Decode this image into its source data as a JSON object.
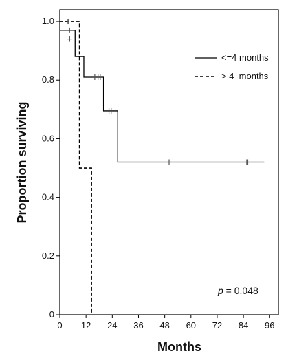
{
  "chart_data": {
    "type": "line",
    "subtype": "kaplan-meier",
    "xlabel": "Months",
    "ylabel": "Proportion surviving",
    "xlim": [
      0,
      100
    ],
    "ylim": [
      0,
      1.04
    ],
    "xticks": [
      0,
      12,
      24,
      36,
      48,
      60,
      72,
      84,
      96
    ],
    "yticks": [
      0,
      0.2,
      0.4,
      0.6,
      0.8,
      1.0
    ],
    "ytick_labels": [
      "0",
      "0.2",
      "0.4",
      "0.6",
      "0.8",
      "1.0"
    ],
    "legend_position": "top-right",
    "series": [
      {
        "name": "<=4 months",
        "style": "solid",
        "steps": [
          [
            0,
            0.97
          ],
          [
            7,
            0.88
          ],
          [
            11,
            0.81
          ],
          [
            20,
            0.695
          ],
          [
            26.5,
            0.52
          ],
          [
            93.5,
            0.52
          ]
        ],
        "censored": [
          [
            4.5,
            0.97
          ],
          [
            16,
            0.81
          ],
          [
            17.5,
            0.81
          ],
          [
            18.5,
            0.81
          ],
          [
            22.5,
            0.695
          ],
          [
            23.5,
            0.695
          ],
          [
            50,
            0.52
          ],
          [
            85.5,
            0.52
          ],
          [
            86,
            0.52
          ]
        ]
      },
      {
        "name": "> 4  months",
        "style": "dashed",
        "steps": [
          [
            0,
            1.0
          ],
          [
            9,
            0.5
          ],
          [
            14.5,
            0.0
          ]
        ],
        "censored": [
          [
            3.5,
            1.0
          ],
          [
            4,
            1.0
          ]
        ]
      }
    ],
    "annotations": [
      {
        "prefix": "p",
        "text": " = 0.048"
      }
    ],
    "extra_marks": [
      [
        4.5,
        0.94
      ]
    ]
  }
}
